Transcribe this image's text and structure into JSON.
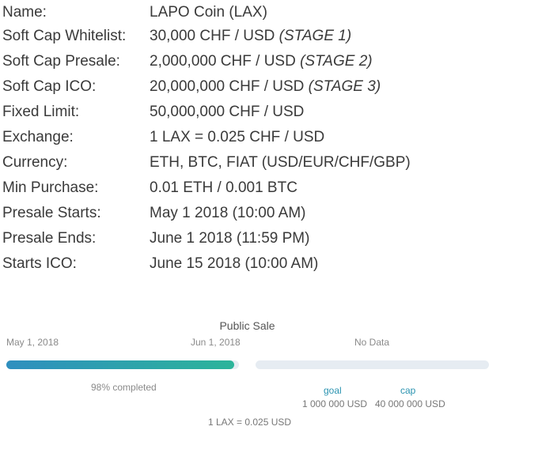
{
  "details": [
    {
      "label": "Name:",
      "value": "LAPO Coin (LAX)",
      "stage": ""
    },
    {
      "label": "Soft Cap Whitelist:",
      "value": "30,000 CHF / USD ",
      "stage": "(STAGE 1)"
    },
    {
      "label": "Soft Cap Presale:",
      "value": "2,000,000 CHF / USD ",
      "stage": "(STAGE 2)"
    },
    {
      "label": "Soft Cap ICO:",
      "value": "20,000,000 CHF / USD ",
      "stage": "(STAGE 3)"
    },
    {
      "label": "Fixed Limit:",
      "value": "50,000,000 CHF / USD",
      "stage": ""
    },
    {
      "label": "Exchange:",
      "value": "1 LAX = 0.025 CHF / USD",
      "stage": ""
    },
    {
      "label": "Currency:",
      "value": "ETH, BTC, FIAT (USD/EUR/CHF/GBP)",
      "stage": ""
    },
    {
      "label": "Min Purchase:",
      "value": "0.01 ETH / 0.001 BTC",
      "stage": ""
    },
    {
      "label": "Presale Starts:",
      "value": "May 1 2018 (10:00 AM)",
      "stage": ""
    },
    {
      "label": "Presale Ends:",
      "value": "June 1 2018 (11:59 PM)",
      "stage": ""
    },
    {
      "label": "Starts ICO:",
      "value": "June 15 2018 (10:00 AM)",
      "stage": ""
    }
  ],
  "sale": {
    "title": "Public Sale",
    "date_start": "May 1, 2018",
    "date_end": "Jun 1, 2018",
    "no_data": "No Data",
    "progress_percent": 98,
    "completed_text": "98% completed",
    "goal_label": "goal",
    "goal_value": "1 000 000 USD",
    "cap_label": "cap",
    "cap_value": "40 000 000 USD",
    "rate": "1 LAX = 0.025 USD"
  },
  "colors": {
    "progress_start": "#2f8fbf",
    "progress_end": "#2cb49a",
    "track": "#e6ecf2",
    "accent_label": "#2a93b0"
  }
}
